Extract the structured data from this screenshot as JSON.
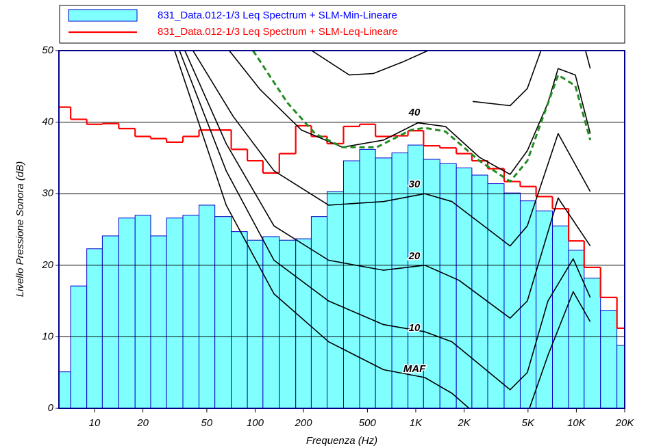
{
  "chart_data": {
    "type": "bar",
    "x_label": "Frequenza (Hz)",
    "y_label": "Livello Pressione Sonora (dB)",
    "x_log": true,
    "xlim": [
      6,
      20000
    ],
    "ylim": [
      0,
      50
    ],
    "yticks": [
      0,
      10,
      20,
      30,
      40,
      50
    ],
    "xticks": [
      10,
      20,
      50,
      100,
      200,
      500,
      {
        "value": 1000,
        "label": "1K"
      },
      {
        "value": 2000,
        "label": "2K"
      },
      {
        "value": 5000,
        "label": "5K"
      },
      {
        "value": 10000,
        "label": "10K"
      },
      {
        "value": 20000,
        "label": "20K"
      }
    ],
    "grid": true,
    "x": [
      6.3,
      8,
      10,
      12.5,
      16,
      20,
      25,
      31.5,
      40,
      50,
      63,
      80,
      100,
      125,
      160,
      200,
      250,
      315,
      400,
      500,
      630,
      800,
      1000,
      1250,
      1600,
      2000,
      2500,
      3150,
      4000,
      5000,
      6300,
      8000,
      10000,
      12500,
      16000,
      20000
    ],
    "series": [
      {
        "name": "831_Data.012-1/3 Leq Spectrum + SLM-Min-Lineare",
        "color": "#80ffff",
        "edge_color": "#0000cc",
        "text_color": "#0000ff",
        "style": "bar",
        "values": [
          5.1,
          17.1,
          22.3,
          24.1,
          26.6,
          27.0,
          24.1,
          26.6,
          27.0,
          28.4,
          26.8,
          24.7,
          23.5,
          24.0,
          23.5,
          23.7,
          26.8,
          30.3,
          34.6,
          36.2,
          35.0,
          35.7,
          36.8,
          34.8,
          34.2,
          33.6,
          32.6,
          31.4,
          30.1,
          29.0,
          27.6,
          25.5,
          22.1,
          18.2,
          13.7,
          8.8
        ]
      },
      {
        "name": "831_Data.012-1/3 Leq Spectrum + SLM-Leq-Lineare",
        "color": "#ff0000",
        "text_color": "#ff0000",
        "style": "step",
        "values": [
          42.1,
          40.4,
          39.7,
          39.8,
          39.1,
          38.0,
          37.7,
          37.2,
          38.0,
          38.9,
          38.9,
          36.2,
          34.6,
          32.9,
          35.6,
          39.5,
          38.0,
          37.0,
          39.4,
          39.7,
          38.0,
          38.1,
          38.8,
          36.7,
          36.4,
          35.6,
          34.6,
          33.5,
          31.7,
          31.0,
          29.6,
          27.9,
          23.4,
          19.7,
          15.5,
          11.2
        ]
      }
    ],
    "curves": [
      {
        "label": "MAF",
        "color": "#000000",
        "x": [
          31.5,
          66,
          131,
          287,
          630,
          1140,
          1680,
          2150,
          3150,
          5100,
          6650,
          9560,
          12200
        ],
        "values": [
          50,
          28.4,
          16.0,
          9.3,
          5.4,
          4.3,
          2.1,
          0,
          null,
          0,
          7.4,
          16.3,
          12.1
        ]
      },
      {
        "label": "10",
        "color": "#000000",
        "x": [
          33.8,
          66,
          131,
          287,
          630,
          1140,
          1680,
          3870,
          4950,
          6650,
          9560,
          12200
        ],
        "values": [
          50,
          33.2,
          20.7,
          15.0,
          11.7,
          10.7,
          9.3,
          2.6,
          5.0,
          15.0,
          20.9,
          15.5
        ]
      },
      {
        "label": "20",
        "color": "#000000",
        "x": [
          36.5,
          66,
          131,
          287,
          630,
          1140,
          1860,
          3870,
          4950,
          7700,
          12200
        ],
        "values": [
          50,
          37.0,
          25.5,
          20.7,
          19.3,
          20.0,
          17.9,
          12.6,
          15.0,
          29.4,
          22.7
        ]
      },
      {
        "label": "30",
        "color": "#000000",
        "x": [
          41,
          73,
          131,
          287,
          630,
          1140,
          1680,
          3870,
          4950,
          7700,
          12200
        ],
        "values": [
          50,
          40.8,
          33.2,
          28.4,
          28.9,
          30.0,
          28.9,
          22.7,
          25.5,
          38.4,
          30.3
        ]
      },
      {
        "label": "40",
        "color": "#000000",
        "x": [
          69,
          107,
          194,
          350,
          630,
          1030,
          1530,
          2490,
          3870,
          4950,
          6650,
          7700,
          9850,
          12200
        ],
        "values": [
          50,
          44.6,
          38.9,
          36.5,
          37.5,
          39.9,
          39.4,
          35.1,
          32.7,
          36.0,
          42.7,
          47.5,
          46.6,
          38.4
        ]
      },
      {
        "color": "#000000",
        "x": [
          225,
          385,
          544,
          846,
          1190,
          1700,
          2260,
          3870,
          4950,
          6020,
          8000,
          11400,
          12200
        ],
        "values": [
          50,
          46.6,
          46.8,
          48.5,
          50,
          null,
          42.9,
          42.3,
          44.7,
          50,
          null,
          50,
          47.5
        ]
      },
      {
        "color": "#228b22",
        "dashed": true,
        "x": [
          97,
          159,
          236,
          350,
          572,
          934,
          1140,
          1530,
          2490,
          3870,
          4950,
          7700,
          9850,
          12200
        ],
        "values": [
          50,
          42.7,
          38.4,
          36.5,
          36.5,
          38.9,
          39.2,
          38.7,
          34.6,
          31.7,
          34.6,
          46.6,
          45.1,
          37.5
        ]
      }
    ]
  }
}
